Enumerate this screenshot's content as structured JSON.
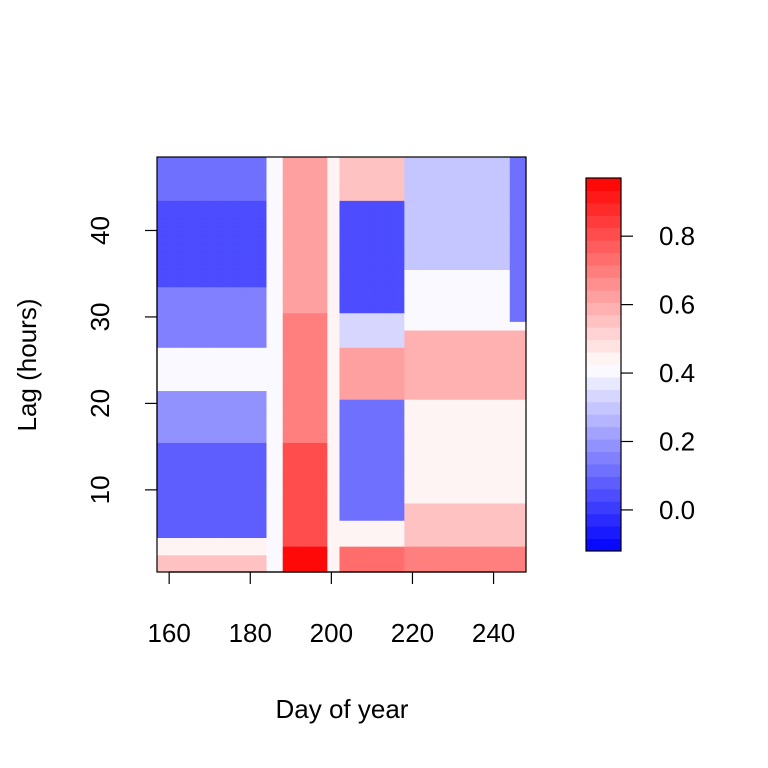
{
  "chart_data": {
    "type": "heatmap",
    "title": "",
    "xlabel": "Day of year",
    "ylabel": "Lag (hours)",
    "xlim": [
      157,
      248
    ],
    "ylim": [
      0.5,
      48.5
    ],
    "x_ticks": [
      160,
      180,
      200,
      220,
      240
    ],
    "y_ticks": [
      10,
      20,
      30,
      40
    ],
    "x_tick_labels": [
      "160",
      "180",
      "200",
      "220",
      "240"
    ],
    "y_tick_labels": [
      "10",
      "20",
      "30",
      "40"
    ],
    "grid": false,
    "colorbar": {
      "range": [
        -0.12,
        0.97
      ],
      "ticks": [
        0.0,
        0.2,
        0.4,
        0.6,
        0.8
      ],
      "tick_labels": [
        "0.0",
        "0.2",
        "0.4",
        "0.6",
        "0.8"
      ],
      "low_color": "#0000ff",
      "mid_color": "#ffffff",
      "high_color": "#ff0000",
      "mid_value": 0.42,
      "n_levels": 30
    },
    "grid_resolution": {
      "days": [
        157,
        248,
        1
      ],
      "lags": [
        1,
        48,
        1
      ]
    },
    "regions": [
      {
        "days": [
          157,
          184
        ],
        "lags": [
          1,
          2
        ],
        "value": 0.55
      },
      {
        "days": [
          157,
          184
        ],
        "lags": [
          3,
          4
        ],
        "value": 0.45
      },
      {
        "days": [
          157,
          184
        ],
        "lags": [
          5,
          15
        ],
        "value": 0.08
      },
      {
        "days": [
          157,
          184
        ],
        "lags": [
          16,
          21
        ],
        "value": 0.18
      },
      {
        "days": [
          157,
          184
        ],
        "lags": [
          22,
          26
        ],
        "value": 0.4
      },
      {
        "days": [
          157,
          184
        ],
        "lags": [
          27,
          33
        ],
        "value": 0.15
      },
      {
        "days": [
          157,
          184
        ],
        "lags": [
          34,
          43
        ],
        "value": 0.03
      },
      {
        "days": [
          157,
          184
        ],
        "lags": [
          44,
          48
        ],
        "value": 0.12
      },
      {
        "days": [
          184,
          188
        ],
        "lags": [
          1,
          48
        ],
        "value": 0.4
      },
      {
        "days": [
          188,
          199
        ],
        "lags": [
          1,
          3
        ],
        "value": 0.95
      },
      {
        "days": [
          188,
          199
        ],
        "lags": [
          4,
          15
        ],
        "value": 0.82
      },
      {
        "days": [
          188,
          199
        ],
        "lags": [
          16,
          30
        ],
        "value": 0.7
      },
      {
        "days": [
          188,
          199
        ],
        "lags": [
          31,
          48
        ],
        "value": 0.62
      },
      {
        "days": [
          199,
          202
        ],
        "lags": [
          1,
          48
        ],
        "value": 0.45
      },
      {
        "days": [
          202,
          218
        ],
        "lags": [
          1,
          3
        ],
        "value": 0.72
      },
      {
        "days": [
          202,
          218
        ],
        "lags": [
          4,
          6
        ],
        "value": 0.45
      },
      {
        "days": [
          202,
          218
        ],
        "lags": [
          7,
          20
        ],
        "value": 0.12
      },
      {
        "days": [
          202,
          218
        ],
        "lags": [
          21,
          26
        ],
        "value": 0.62
      },
      {
        "days": [
          202,
          218
        ],
        "lags": [
          27,
          30
        ],
        "value": 0.35
      },
      {
        "days": [
          202,
          218
        ],
        "lags": [
          31,
          43
        ],
        "value": 0.05
      },
      {
        "days": [
          202,
          218
        ],
        "lags": [
          44,
          48
        ],
        "value": 0.55
      },
      {
        "days": [
          218,
          248
        ],
        "lags": [
          1,
          3
        ],
        "value": 0.68
      },
      {
        "days": [
          218,
          248
        ],
        "lags": [
          4,
          8
        ],
        "value": 0.55
      },
      {
        "days": [
          218,
          248
        ],
        "lags": [
          9,
          20
        ],
        "value": 0.45
      },
      {
        "days": [
          218,
          248
        ],
        "lags": [
          21,
          28
        ],
        "value": 0.6
      },
      {
        "days": [
          218,
          248
        ],
        "lags": [
          29,
          35
        ],
        "value": 0.4
      },
      {
        "days": [
          218,
          248
        ],
        "lags": [
          36,
          48
        ],
        "value": 0.3
      },
      {
        "days": [
          244,
          248
        ],
        "lags": [
          30,
          48
        ],
        "value": 0.12
      }
    ]
  }
}
